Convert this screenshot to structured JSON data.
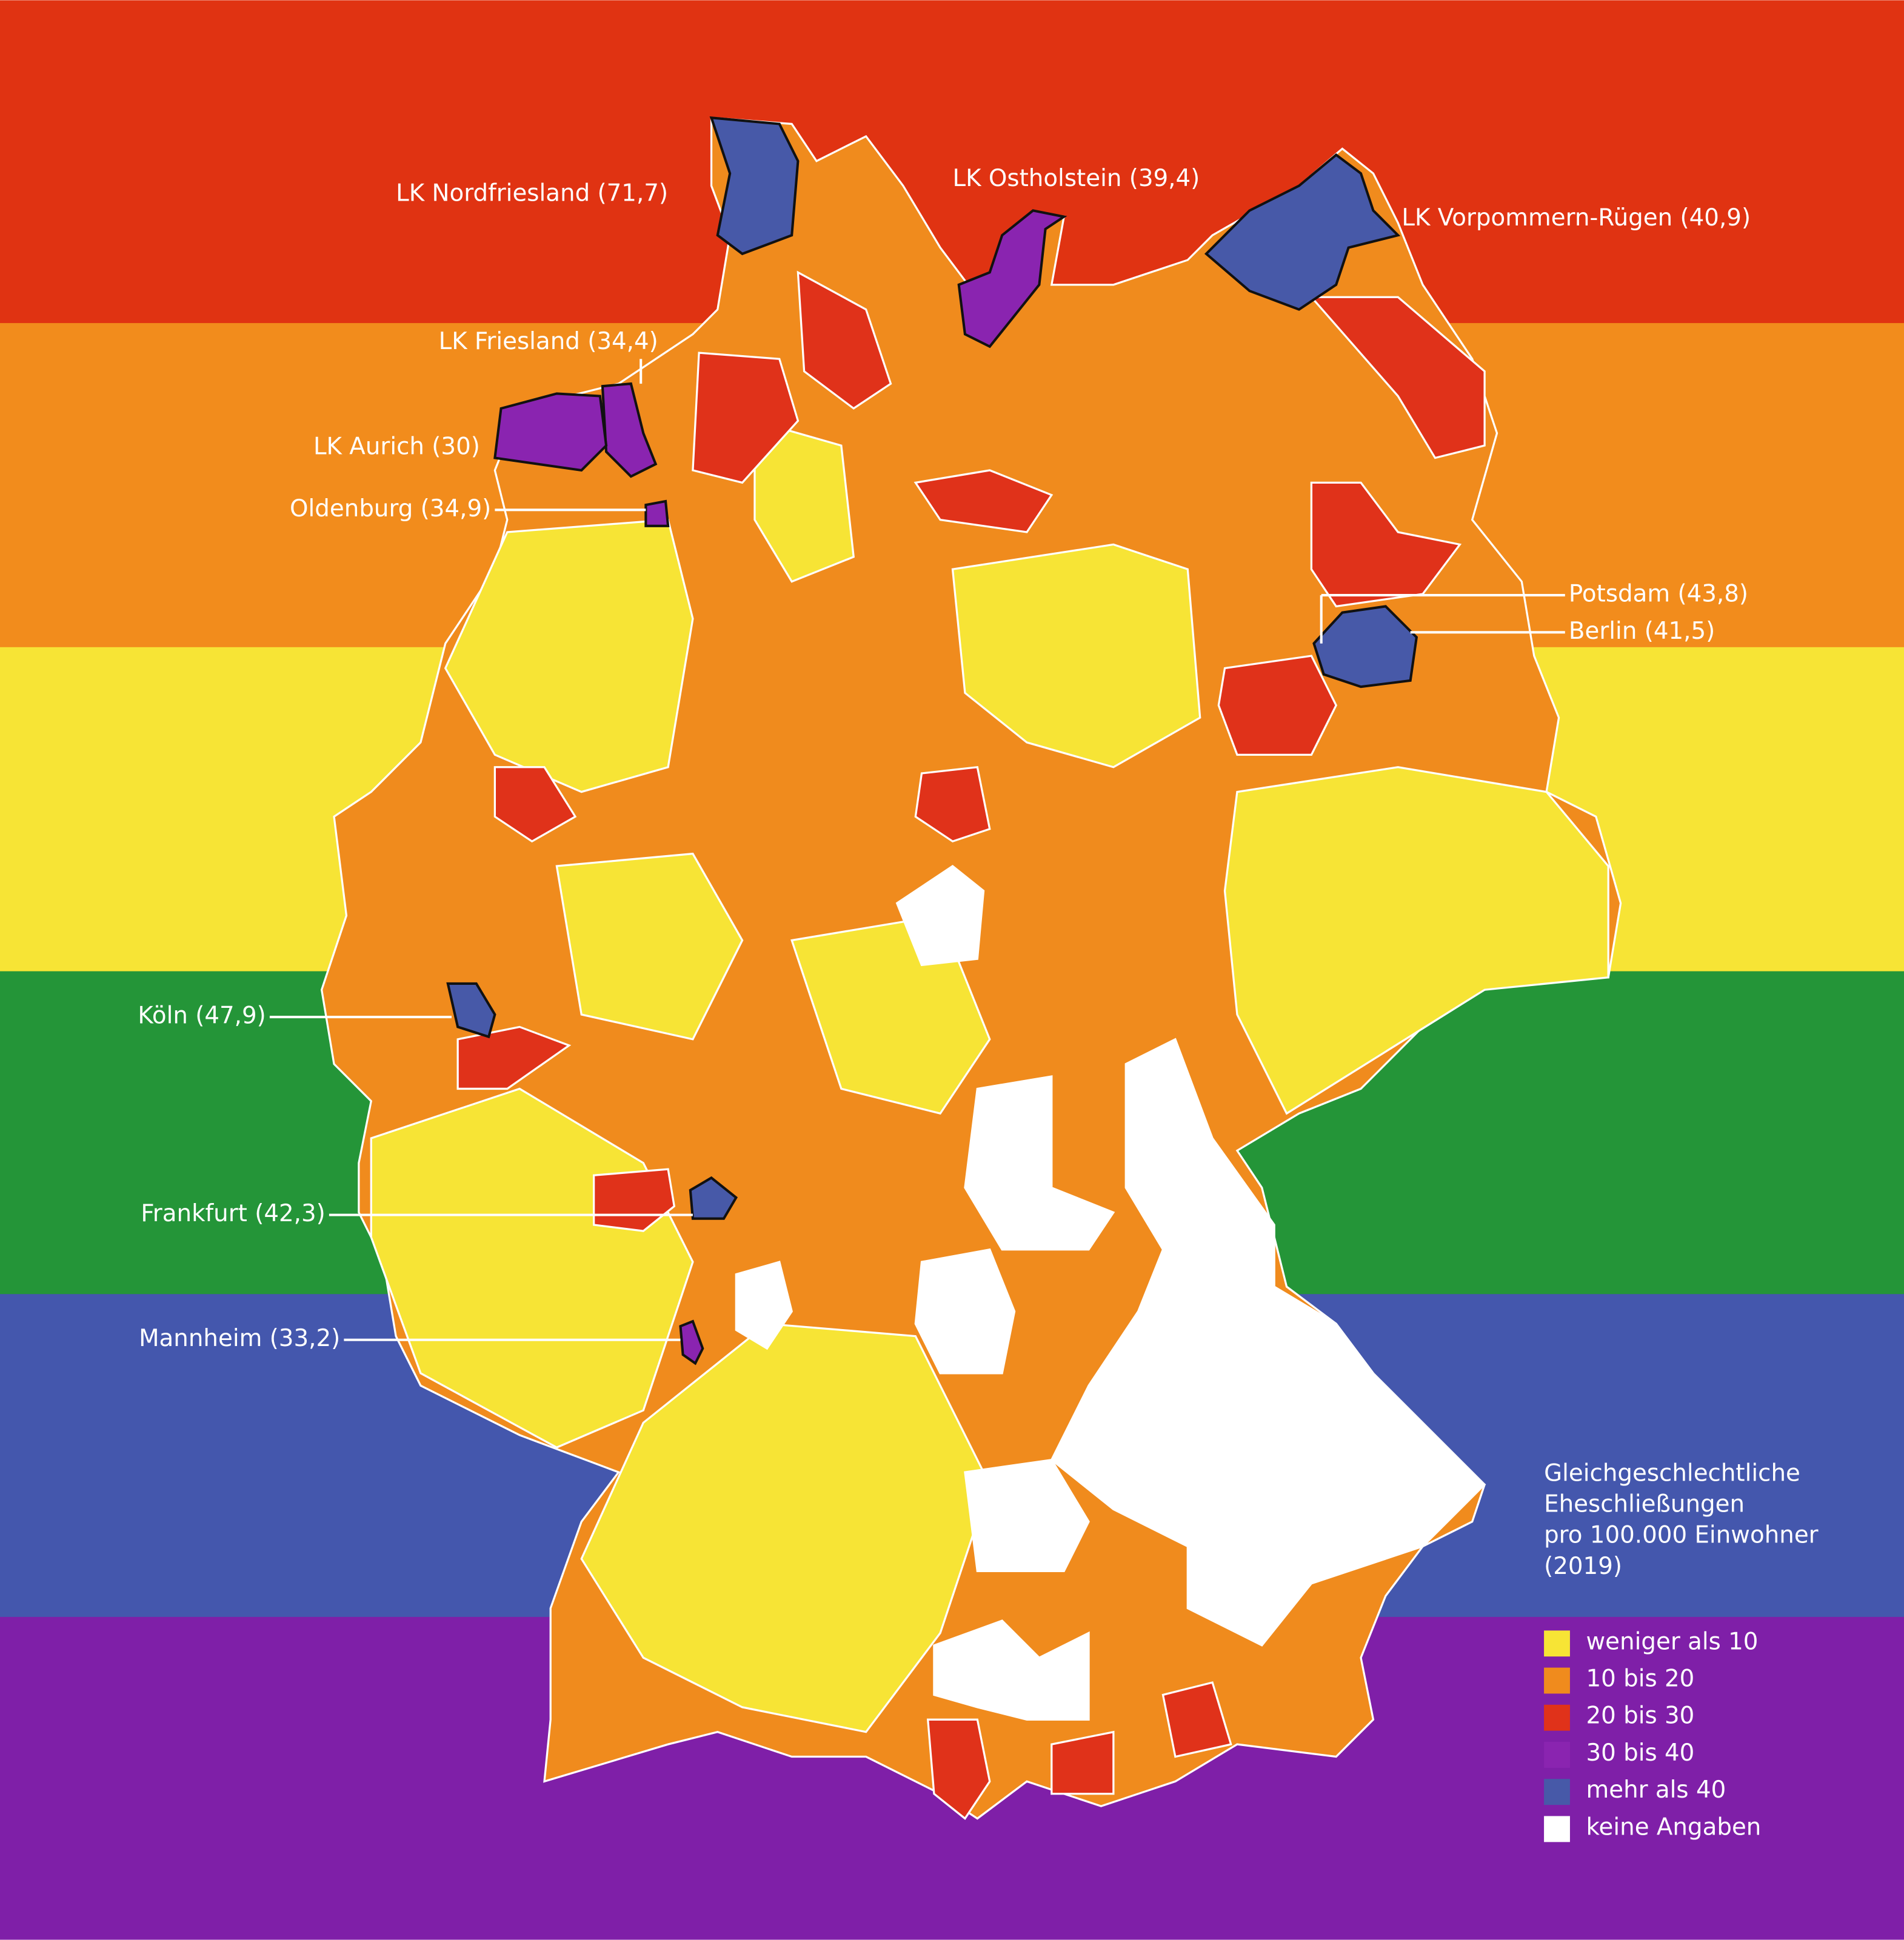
{
  "annotations": [
    "LK Nordfriesland (71,7)",
    "LK Ostholstein (39,4)",
    "LK Vorpommern-Rügen (40,9)",
    "LK Friesland (34,4)",
    "LK Aurich (30)",
    "Oldenburg (34,9)",
    "Potsdam (43,8)",
    "Berlin (41,5)",
    "Köln (47,9)",
    "Frankfurt (42,3)",
    "Mannheim (33,2)"
  ],
  "legend": {
    "title": [
      "Gleichgeschlechtliche",
      "Eheschließungen",
      "pro 100.000 Einwohner",
      "(2019)"
    ],
    "items": [
      {
        "label": "weniger als 10",
        "color": "#f7e435"
      },
      {
        "label": "10 bis 20",
        "color": "#f08b1d"
      },
      {
        "label": "20 bis 30",
        "color": "#e0321a"
      },
      {
        "label": "30 bis 40",
        "color": "#8a24b0"
      },
      {
        "label": "mehr als 40",
        "color": "#4759a8"
      },
      {
        "label": "keine Angaben",
        "color": "#ffffff"
      }
    ]
  }
}
